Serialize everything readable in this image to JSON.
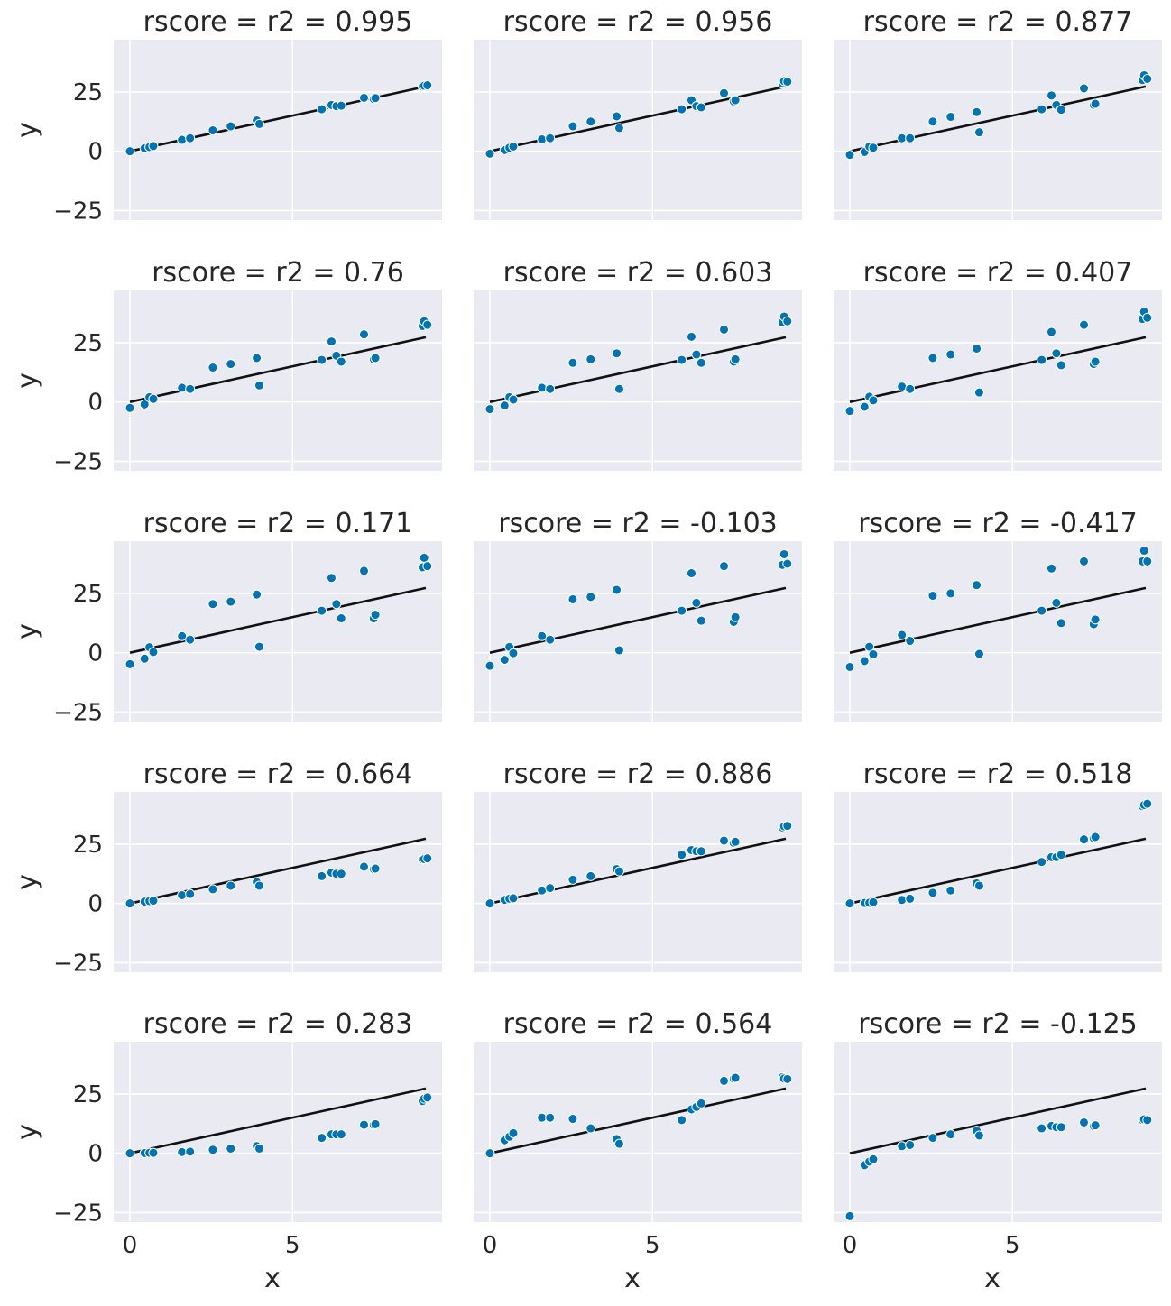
{
  "chart_data": {
    "type": "scatter",
    "layout": {
      "rows": 5,
      "cols": 3,
      "sharex": true,
      "sharey": true
    },
    "xlabel": "x",
    "ylabel": "y",
    "xlim": [
      -0.5,
      9.6
    ],
    "ylim": [
      -29,
      47
    ],
    "xticks": [
      0,
      5
    ],
    "yticks": [
      -25,
      0,
      25
    ],
    "fit_line": {
      "slope": 3.0,
      "intercept": 0.0,
      "x": [
        0,
        9.1
      ]
    },
    "x": [
      0.0,
      0.45,
      0.6,
      0.72,
      1.6,
      1.85,
      2.55,
      3.1,
      3.9,
      3.98,
      5.9,
      6.2,
      6.35,
      6.5,
      7.2,
      7.5,
      7.55,
      9.0,
      9.05,
      9.15
    ],
    "panels": [
      {
        "title": "rscore = r2 = 0.995",
        "y": [
          0.0,
          1.3,
          1.8,
          2.2,
          4.8,
          5.5,
          8.8,
          10.5,
          13.0,
          11.5,
          17.7,
          19.5,
          19.0,
          19.2,
          22.5,
          22.0,
          22.4,
          27.3,
          27.6,
          27.8
        ]
      },
      {
        "title": "rscore = r2 = 0.956",
        "y": [
          -1.0,
          0.5,
          1.5,
          2.0,
          5.0,
          5.5,
          10.5,
          12.5,
          14.7,
          9.8,
          17.7,
          21.5,
          19.0,
          18.5,
          24.5,
          21.0,
          21.5,
          28.5,
          29.5,
          29.3
        ]
      },
      {
        "title": "rscore = r2 = 0.877",
        "y": [
          -1.5,
          -0.3,
          2.0,
          1.5,
          5.5,
          5.5,
          12.5,
          14.5,
          16.5,
          8.0,
          17.7,
          23.5,
          19.5,
          17.5,
          26.5,
          19.5,
          20.0,
          30.0,
          32.0,
          30.5
        ]
      },
      {
        "title": "rscore = r2 = 0.76",
        "y": [
          -2.5,
          -1.0,
          2.0,
          1.3,
          6.0,
          5.5,
          14.5,
          16.0,
          18.5,
          7.0,
          17.7,
          25.5,
          19.5,
          17.0,
          28.5,
          18.0,
          18.5,
          32.0,
          34.0,
          32.5
        ]
      },
      {
        "title": "rscore = r2 = 0.603",
        "y": [
          -3.0,
          -1.5,
          2.0,
          1.0,
          6.0,
          5.5,
          16.5,
          18.0,
          20.5,
          5.5,
          17.7,
          27.5,
          20.0,
          16.5,
          30.5,
          17.0,
          18.0,
          33.5,
          36.0,
          34.0
        ]
      },
      {
        "title": "rscore = r2 = 0.407",
        "y": [
          -3.8,
          -2.0,
          2.2,
          0.7,
          6.5,
          5.5,
          18.5,
          20.0,
          22.5,
          4.0,
          17.7,
          29.5,
          20.5,
          15.5,
          32.5,
          16.0,
          17.0,
          35.0,
          38.0,
          35.5
        ]
      },
      {
        "title": "rscore = r2 = 0.171",
        "y": [
          -4.8,
          -2.5,
          2.3,
          0.3,
          7.0,
          5.5,
          20.5,
          21.5,
          24.5,
          2.5,
          17.7,
          31.5,
          20.5,
          14.5,
          34.5,
          14.5,
          16.0,
          36.0,
          40.0,
          36.5
        ]
      },
      {
        "title": "rscore = r2 = -0.103",
        "y": [
          -5.5,
          -3.0,
          2.4,
          -0.2,
          7.0,
          5.5,
          22.5,
          23.5,
          26.5,
          1.0,
          17.7,
          33.5,
          21.0,
          13.5,
          36.5,
          13.0,
          15.0,
          37.0,
          41.5,
          37.5
        ]
      },
      {
        "title": "rscore = r2 = -0.417",
        "y": [
          -6.0,
          -3.5,
          2.5,
          -0.7,
          7.5,
          5.0,
          24.0,
          25.0,
          28.5,
          -0.5,
          17.7,
          35.5,
          21.0,
          12.5,
          38.5,
          12.0,
          14.0,
          38.5,
          43.0,
          38.5
        ]
      },
      {
        "title": "rscore = r2 = 0.664",
        "y": [
          0.0,
          0.8,
          1.0,
          1.2,
          3.5,
          4.0,
          6.0,
          7.5,
          9.0,
          7.5,
          11.5,
          13.0,
          12.5,
          12.5,
          15.5,
          14.5,
          14.7,
          18.5,
          18.7,
          19.0
        ]
      },
      {
        "title": "rscore = r2 = 0.886",
        "y": [
          0.0,
          1.5,
          2.0,
          2.2,
          5.5,
          6.5,
          10.0,
          11.5,
          14.5,
          13.5,
          20.5,
          22.5,
          22.0,
          22.0,
          26.5,
          25.5,
          26.0,
          32.0,
          32.5,
          32.7
        ]
      },
      {
        "title": "rscore = r2 = 0.518",
        "y": [
          0.0,
          0.2,
          0.3,
          0.5,
          1.5,
          2.0,
          4.5,
          5.5,
          8.5,
          7.5,
          17.5,
          19.5,
          19.5,
          20.5,
          27.0,
          27.5,
          28.0,
          41.0,
          41.5,
          42.0
        ]
      },
      {
        "title": "rscore = r2 = 0.283",
        "y": [
          0.0,
          0.1,
          0.2,
          0.2,
          0.5,
          0.7,
          1.5,
          2.0,
          3.0,
          2.0,
          6.5,
          8.0,
          8.0,
          8.0,
          12.0,
          12.0,
          12.3,
          22.0,
          23.0,
          23.5
        ]
      },
      {
        "title": "rscore = r2 = 0.564",
        "y": [
          0.0,
          5.5,
          7.0,
          8.5,
          15.0,
          15.0,
          14.5,
          10.5,
          6.0,
          4.0,
          14.0,
          18.5,
          19.5,
          21.0,
          30.5,
          31.5,
          31.8,
          32.0,
          31.5,
          31.3
        ]
      },
      {
        "title": "rscore = r2 = -0.125",
        "y": [
          -26.5,
          -5.0,
          -3.5,
          -2.5,
          3.0,
          3.5,
          6.5,
          8.0,
          9.5,
          7.5,
          10.5,
          11.5,
          11.0,
          11.0,
          13.0,
          11.5,
          11.8,
          14.0,
          14.3,
          14.0
        ]
      }
    ]
  }
}
